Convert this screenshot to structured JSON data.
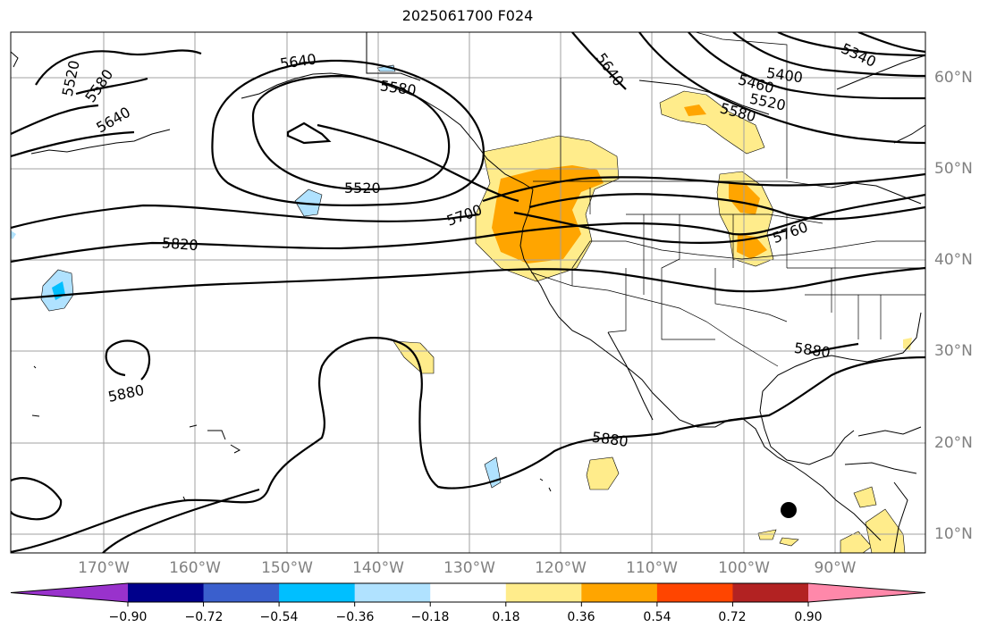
{
  "title": "2025061700 F024",
  "lon_labels": [
    "170°W",
    "160°W",
    "150°W",
    "140°W",
    "130°W",
    "120°W",
    "110°W",
    "100°W",
    "90°W"
  ],
  "lat_labels": [
    "60°N",
    "50°N",
    "40°N",
    "30°N",
    "20°N",
    "10°N"
  ],
  "contour_labels": [
    "5520",
    "5580",
    "5640",
    "5640",
    "5580",
    "5520",
    "5700",
    "5820",
    "5880",
    "5880",
    "5880",
    "5760",
    "5580",
    "5520",
    "5460",
    "5400",
    "5340",
    "5640"
  ],
  "colorbar": {
    "tick_labels": [
      "−0.90",
      "−0.72",
      "−0.54",
      "−0.36",
      "−0.18",
      "0.18",
      "0.36",
      "0.54",
      "0.72",
      "0.90"
    ],
    "colors": [
      "#9932cc",
      "#00008b",
      "#3a5fcd",
      "#00bfff",
      "#b0e2ff",
      "#ffffff",
      "#ffec8b",
      "#ffa500",
      "#ff4500",
      "#b22222",
      "#ff88aa"
    ]
  },
  "shading_colors": {
    "light_yellow": "#ffec8b",
    "orange": "#ffa500",
    "light_blue": "#b0e2ff",
    "blue": "#00bfff"
  }
}
